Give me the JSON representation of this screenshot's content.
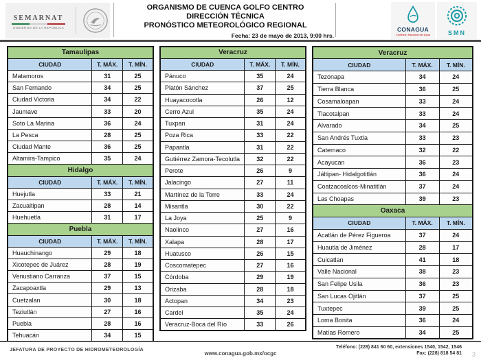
{
  "header": {
    "semarnat": {
      "name": "SEMARNAT",
      "caption": "GOBIERNO DE LA REPÚBLICA"
    },
    "titles": [
      "ORGANISMO DE CUENCA GOLFO CENTRO",
      "DIRECCIÓN TÉCNICA",
      "PRONÓSTICO METEOROLÓGICO REGIONAL"
    ],
    "date_line": "Fecha: 23 de mayo de 2013, 9:00 hrs.",
    "conagua": {
      "name": "CONAGUA",
      "caption": "Comisión Nacional del Agua"
    },
    "smn": {
      "name": "SMN"
    }
  },
  "table_headers": {
    "city": "CIUDAD",
    "tmax": "T. MÁX.",
    "tmin": "T. MÍN."
  },
  "columns": [
    {
      "tables": [
        {
          "state": "Tamaulipas",
          "rows": [
            [
              "Matamoros",
              31,
              25
            ],
            [
              "San Fernando",
              34,
              25
            ],
            [
              "Ciudad Victoria",
              34,
              22
            ],
            [
              "Jaumave",
              33,
              20
            ],
            [
              "Soto La Marina",
              36,
              24
            ],
            [
              "La Pesca",
              28,
              25
            ],
            [
              "Ciudad Mante",
              36,
              25
            ],
            [
              "Altamira-Tampico",
              35,
              24
            ]
          ]
        },
        {
          "state": "Hidalgo",
          "rows": [
            [
              "Huejutla",
              33,
              21
            ],
            [
              "Zacualtipan",
              28,
              14
            ],
            [
              "Huehuetla",
              31,
              17
            ]
          ]
        },
        {
          "state": "Puebla",
          "rows": [
            [
              "Huauchinango",
              29,
              18
            ],
            [
              "Xicotepec de Juárez",
              28,
              19
            ],
            [
              "Venustiano Carranza",
              37,
              15
            ],
            [
              "Zacapoaxtla",
              29,
              13
            ],
            [
              "Cuetzalan",
              30,
              18
            ],
            [
              "Teziutlán",
              27,
              16
            ],
            [
              "Puebla",
              28,
              16
            ],
            [
              "Tehuacán",
              34,
              15
            ]
          ]
        }
      ]
    },
    {
      "tables": [
        {
          "state": "Veracruz",
          "rows": [
            [
              "Pánuco",
              35,
              24
            ],
            [
              "Platón Sánchez",
              37,
              25
            ],
            [
              "Huayacocotla",
              26,
              12
            ],
            [
              "Cerro Azul",
              35,
              24
            ],
            [
              "Tuxpan",
              31,
              24
            ],
            [
              "Poza Rica",
              33,
              22
            ],
            [
              "Papantla",
              31,
              22
            ],
            [
              "Gutiérrez Zamora-Tecolutla",
              32,
              22
            ],
            [
              "Perote",
              26,
              9
            ],
            [
              "Jalacingo",
              27,
              11
            ],
            [
              "Martínez de la Torre",
              33,
              24
            ],
            [
              "Misantla",
              30,
              22
            ],
            [
              "La Joya",
              25,
              9
            ],
            [
              "Naolinco",
              27,
              16
            ],
            [
              "Xalapa",
              28,
              17
            ],
            [
              "Huatusco",
              26,
              15
            ],
            [
              "Coscomatepec",
              27,
              16
            ],
            [
              "Córdoba",
              29,
              19
            ],
            [
              "Orizaba",
              28,
              18
            ],
            [
              "Actopan",
              34,
              23
            ],
            [
              "Cardel",
              35,
              24
            ],
            [
              "Veracruz-Boca del Río",
              33,
              26
            ]
          ]
        }
      ]
    },
    {
      "tables": [
        {
          "state": "Veracruz",
          "rows": [
            [
              "Tezonapa",
              34,
              24
            ],
            [
              "Tierra Blanca",
              36,
              25
            ],
            [
              "Cosamaloapan",
              33,
              24
            ],
            [
              "Tlacotalpan",
              33,
              24
            ],
            [
              "Alvarado",
              34,
              25
            ],
            [
              "San Andrés Tuxtla",
              33,
              23
            ],
            [
              "Catemaco",
              32,
              22
            ],
            [
              "Acayucan",
              36,
              23
            ],
            [
              "Jáltipan- Hidalgotitlán",
              36,
              24
            ],
            [
              "Coatzacoalcos-Minatitlán",
              37,
              24
            ],
            [
              "Las Choapas",
              39,
              23
            ]
          ]
        },
        {
          "state": "Oaxaca",
          "rows": [
            [
              "Acatlán de Pérez Figueroa",
              37,
              24
            ],
            [
              "Huautla de Jiménez",
              28,
              17
            ],
            [
              "Cuicatlan",
              41,
              18
            ],
            [
              "Valle Nacional",
              38,
              23
            ],
            [
              "San Felipe Usila",
              36,
              23
            ],
            [
              "San Lucas Ojitlán",
              37,
              25
            ],
            [
              "Tuxtepec",
              39,
              25
            ],
            [
              "Loma Bonita",
              36,
              24
            ],
            [
              "Matías Romero",
              34,
              25
            ]
          ]
        }
      ]
    }
  ],
  "footer": {
    "department": "JEFATURA DE PROYECTO DE HIDROMETEOROLOGÍA",
    "url": "www.conagua.gob.mx/ocgc",
    "phone": "Teléfono: (228) 841 60 60, extensiones 1540, 1542, 1546",
    "fax": "Fax: (228) 818 54 81",
    "page_number": "3"
  },
  "colors": {
    "state_header_bg": "#A9D18E",
    "column_header_bg": "#BDD7EE",
    "logo_teal": "#1899A5",
    "logo_navy": "#173F5F",
    "caption_red": "#C00000"
  }
}
